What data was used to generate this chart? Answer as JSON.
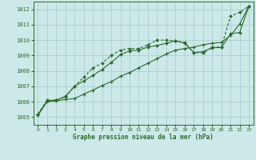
{
  "xlabel": "Graphe pression niveau de la mer (hPa)",
  "bg_color": "#cce8e8",
  "grid_color": "#aacfcf",
  "line_color": "#2d6a2d",
  "x_values": [
    0,
    1,
    2,
    3,
    4,
    5,
    6,
    7,
    8,
    9,
    10,
    11,
    12,
    13,
    14,
    15,
    16,
    17,
    18,
    19,
    20,
    21,
    22,
    23
  ],
  "line1_dashed_diamond": [
    1005.2,
    1006.1,
    1006.1,
    1006.3,
    1007.0,
    1007.6,
    1008.2,
    1008.5,
    1009.0,
    1009.35,
    1009.45,
    1009.45,
    1009.7,
    1010.0,
    1010.0,
    1009.95,
    1009.85,
    1009.2,
    1009.15,
    1009.55,
    1009.55,
    1011.55,
    1011.8,
    1012.2
  ],
  "line2_solid_diamond": [
    1005.15,
    1006.05,
    1006.1,
    1006.35,
    1007.0,
    1007.35,
    1007.7,
    1008.1,
    1008.55,
    1009.05,
    1009.3,
    1009.35,
    1009.55,
    1009.65,
    1009.8,
    1009.95,
    1009.8,
    1009.2,
    1009.25,
    1009.5,
    1009.52,
    1010.4,
    1010.5,
    1012.2
  ],
  "line3_solid_star": [
    1005.1,
    1006.0,
    1006.05,
    1006.15,
    1006.2,
    1006.5,
    1006.75,
    1007.05,
    1007.3,
    1007.65,
    1007.9,
    1008.2,
    1008.5,
    1008.8,
    1009.1,
    1009.35,
    1009.45,
    1009.55,
    1009.7,
    1009.8,
    1009.85,
    1010.3,
    1011.05,
    1012.2
  ],
  "ylim": [
    1004.5,
    1012.5
  ],
  "yticks": [
    1005,
    1006,
    1007,
    1008,
    1009,
    1010,
    1011,
    1012
  ],
  "xticks": [
    0,
    1,
    2,
    3,
    4,
    5,
    6,
    7,
    8,
    9,
    10,
    11,
    12,
    13,
    14,
    15,
    16,
    17,
    18,
    19,
    20,
    21,
    22,
    23
  ],
  "xlim": [
    -0.5,
    23.5
  ]
}
